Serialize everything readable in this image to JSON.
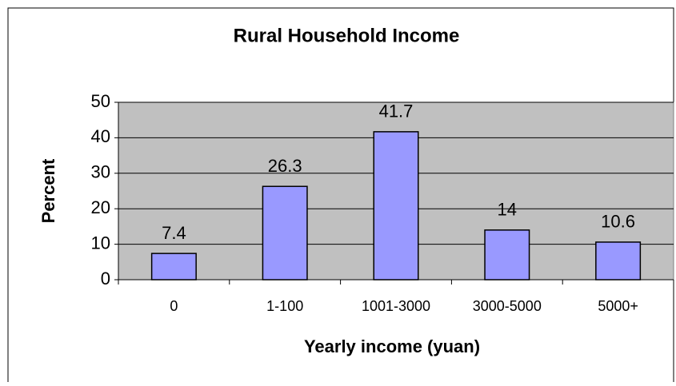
{
  "chart_data": {
    "type": "bar",
    "title": "Rural Household Income",
    "x_label": "Yearly income (yuan)",
    "y_label": "Percent",
    "categories": [
      "0",
      "1-100",
      "1001-3000",
      "3000-5000",
      "5000+"
    ],
    "values": [
      7.4,
      26.3,
      41.7,
      14,
      10.6
    ],
    "color": "#9999ff",
    "ylim": [
      0,
      50
    ],
    "yticks": [
      0,
      10,
      20,
      30,
      40,
      50
    ],
    "grid": true
  }
}
